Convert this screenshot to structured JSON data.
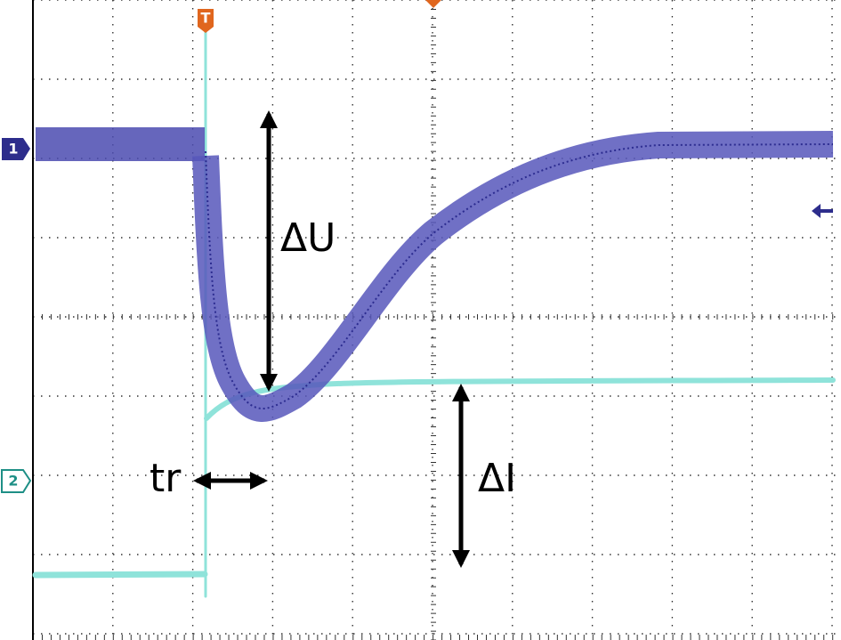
{
  "markers": {
    "trigger": "T",
    "channel1": "1",
    "channel2": "2"
  },
  "annotations": {
    "delta_u": "ΔU",
    "delta_i": "ΔI",
    "rise_time": "tr"
  }
}
